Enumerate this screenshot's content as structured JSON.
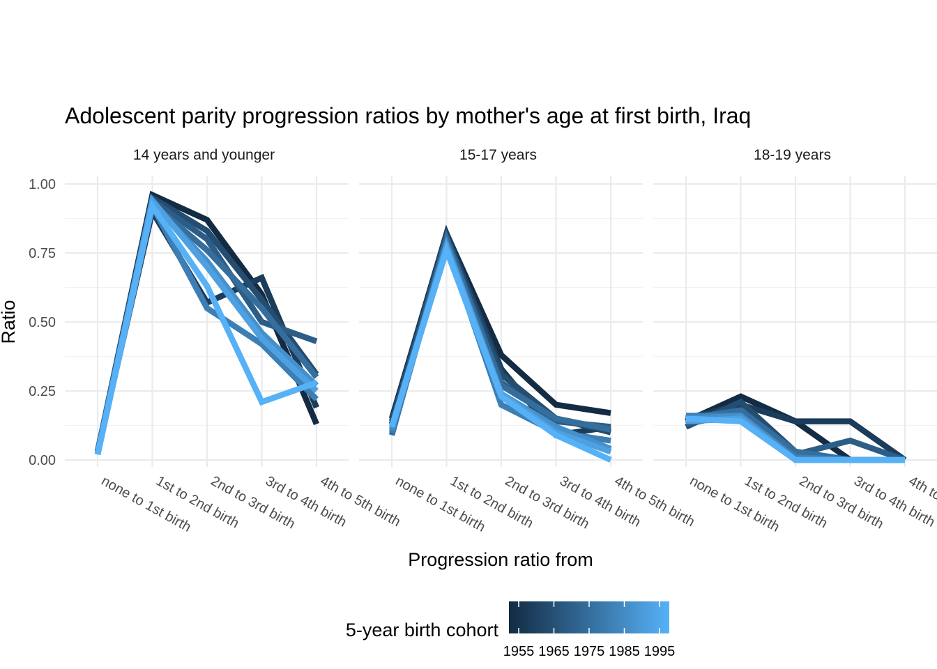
{
  "chart_data": {
    "type": "line",
    "title": "Adolescent parity progression ratios by mother's age at first birth,  Iraq",
    "xlabel": "Progression ratio from",
    "ylabel": "Ratio",
    "ylim": [
      0,
      1
    ],
    "y_ticks": [
      "0.00",
      "0.25",
      "0.50",
      "0.75",
      "1.00"
    ],
    "categories": [
      "none to 1st birth",
      "1st to 2nd birth",
      "2nd to 3rd birth",
      "3rd to 4th birth",
      "4th to 5th birth"
    ],
    "legend": {
      "title": "5-year birth cohort",
      "ticks": [
        "1955",
        "1965",
        "1975",
        "1985",
        "1995"
      ],
      "color_low": "#132B43",
      "color_high": "#56B1F7"
    },
    "panels": [
      {
        "label": "14 years and younger",
        "series": [
          {
            "cohort": 1955,
            "values": [
              0.03,
              0.96,
              0.87,
              0.6,
              0.13
            ]
          },
          {
            "cohort": 1960,
            "values": [
              0.03,
              0.9,
              0.57,
              0.66,
              0.19
            ]
          },
          {
            "cohort": 1965,
            "values": [
              0.03,
              0.95,
              0.83,
              0.58,
              0.31
            ]
          },
          {
            "cohort": 1970,
            "values": [
              0.03,
              0.94,
              0.8,
              0.5,
              0.43
            ]
          },
          {
            "cohort": 1975,
            "values": [
              0.03,
              0.93,
              0.76,
              0.55,
              0.3
            ]
          },
          {
            "cohort": 1980,
            "values": [
              0.02,
              0.92,
              0.55,
              0.42,
              0.22
            ]
          },
          {
            "cohort": 1985,
            "values": [
              0.02,
              0.93,
              0.72,
              0.46,
              0.27
            ]
          },
          {
            "cohort": 1990,
            "values": [
              0.02,
              0.94,
              0.7,
              0.44,
              0.25
            ]
          },
          {
            "cohort": 1995,
            "values": [
              0.02,
              0.92,
              0.63,
              0.21,
              0.28
            ]
          }
        ]
      },
      {
        "label": "15-17 years",
        "series": [
          {
            "cohort": 1955,
            "values": [
              0.15,
              0.82,
              0.38,
              0.2,
              0.17
            ]
          },
          {
            "cohort": 1960,
            "values": [
              0.13,
              0.82,
              0.33,
              0.09,
              0.12
            ]
          },
          {
            "cohort": 1965,
            "values": [
              0.14,
              0.81,
              0.31,
              0.15,
              0.1
            ]
          },
          {
            "cohort": 1970,
            "values": [
              0.12,
              0.8,
              0.28,
              0.14,
              0.12
            ]
          },
          {
            "cohort": 1975,
            "values": [
              0.09,
              0.8,
              0.27,
              0.15,
              0.11
            ]
          },
          {
            "cohort": 1980,
            "values": [
              0.1,
              0.78,
              0.2,
              0.1,
              0.07
            ]
          },
          {
            "cohort": 1985,
            "values": [
              0.11,
              0.78,
              0.24,
              0.12,
              0.04
            ]
          },
          {
            "cohort": 1990,
            "values": [
              0.12,
              0.77,
              0.24,
              0.1,
              0.03
            ]
          },
          {
            "cohort": 1995,
            "values": [
              0.12,
              0.76,
              0.23,
              0.09,
              0.0
            ]
          }
        ]
      },
      {
        "label": "18-19 years",
        "series": [
          {
            "cohort": 1955,
            "values": [
              0.14,
              0.23,
              0.14,
              0.0,
              0.0
            ]
          },
          {
            "cohort": 1960,
            "values": [
              0.15,
              0.2,
              0.14,
              0.14,
              0.0
            ]
          },
          {
            "cohort": 1965,
            "values": [
              0.12,
              0.21,
              0.03,
              0.0,
              0.0
            ]
          },
          {
            "cohort": 1970,
            "values": [
              0.13,
              0.17,
              0.02,
              0.07,
              0.0
            ]
          },
          {
            "cohort": 1975,
            "values": [
              0.15,
              0.18,
              0.03,
              0.0,
              0.0
            ]
          },
          {
            "cohort": 1980,
            "values": [
              0.16,
              0.16,
              0.01,
              0.0,
              0.0
            ]
          },
          {
            "cohort": 1985,
            "values": [
              0.15,
              0.16,
              0.0,
              0.0,
              0.0
            ]
          },
          {
            "cohort": 1990,
            "values": [
              0.14,
              0.15,
              0.0,
              0.0,
              0.0
            ]
          },
          {
            "cohort": 1995,
            "values": [
              0.15,
              0.14,
              0.0,
              0.0,
              0.0
            ]
          }
        ]
      }
    ]
  }
}
